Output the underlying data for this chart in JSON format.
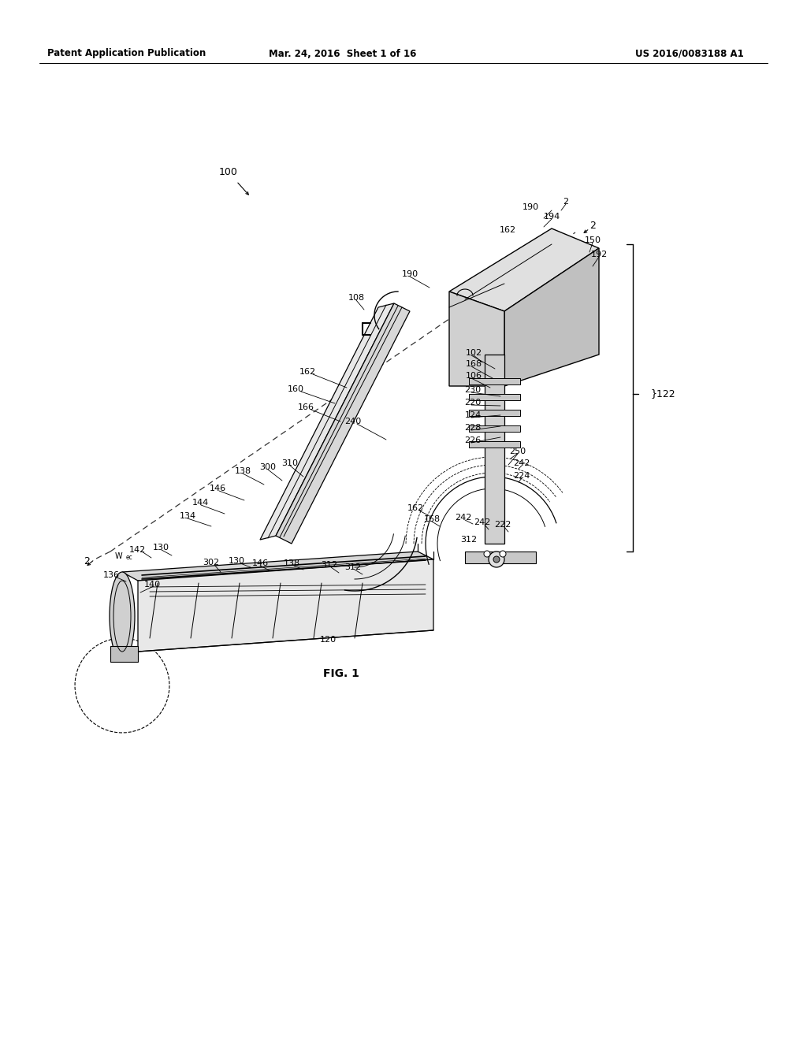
{
  "background_color": "#ffffff",
  "header_left": "Patent Application Publication",
  "header_mid": "Mar. 24, 2016  Sheet 1 of 16",
  "header_right": "US 2016/0083188 A1",
  "fig_label": "FIG. 1"
}
